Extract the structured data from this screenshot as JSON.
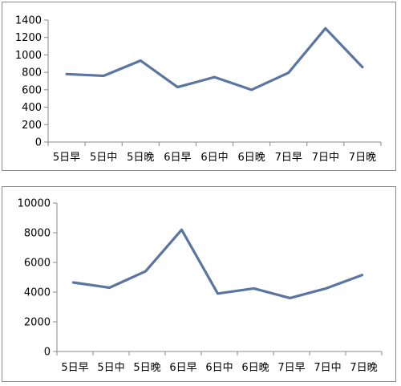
{
  "chart_data": [
    {
      "type": "line",
      "categories": [
        "5日早",
        "5日中",
        "5日晚",
        "6日早",
        "6日中",
        "6日晚",
        "7日早",
        "7日中",
        "7日晚"
      ],
      "values": [
        780,
        760,
        935,
        630,
        745,
        600,
        795,
        1305,
        860
      ],
      "yticks": [
        0,
        200,
        400,
        600,
        800,
        1000,
        1200,
        1400
      ],
      "ylim": [
        0,
        1400
      ],
      "grid": false,
      "line_color": "#5b75a1"
    },
    {
      "type": "line",
      "categories": [
        "5日早",
        "5日中",
        "5日晚",
        "6日早",
        "6日中",
        "6日晚",
        "7日早",
        "7日中",
        "7日晚"
      ],
      "values": [
        4650,
        4300,
        5400,
        8200,
        3900,
        4250,
        3600,
        4250,
        5150
      ],
      "yticks": [
        0,
        2000,
        4000,
        6000,
        8000,
        10000
      ],
      "ylim": [
        0,
        10000
      ],
      "grid": false,
      "line_color": "#5b75a1"
    }
  ]
}
